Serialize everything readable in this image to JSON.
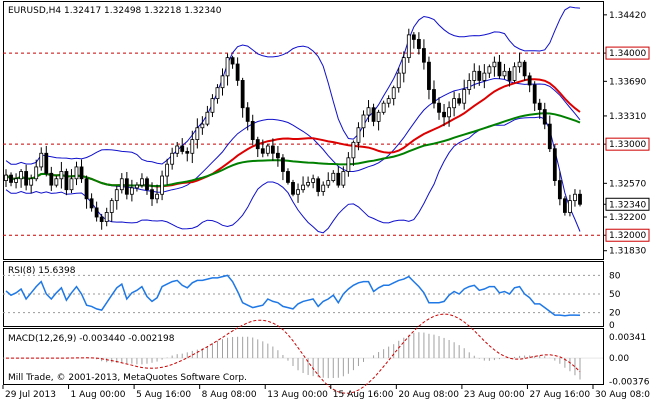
{
  "header": {
    "main": "EURUSD,H4  1.32417 1.32498 1.32218 1.32340",
    "rsi": "RSI(8) 15.6398",
    "macd": "MACD(12,26,9) -0.003440 -0.002198",
    "copyright": "Mill Trade, © 2001-2013, MetaQuotes Software Corp."
  },
  "colors": {
    "candle": "#000000",
    "bollinger": "#1010cc",
    "ma_red": "#dd0000",
    "ma_green": "#008000",
    "level": "#cc0000",
    "rsi": "#1e78e6",
    "macd_signal": "#cc0000",
    "macd_hist": "#a0a0a0"
  },
  "chart_data": [
    {
      "type": "candlestick",
      "title": "EURUSD,H4",
      "symbol": "EURUSD",
      "timeframe": "H4",
      "ohlc_last": {
        "open": 1.32417,
        "high": 1.32498,
        "low": 1.32218,
        "close": 1.3234
      },
      "ylim": [
        1.3175,
        1.3455
      ],
      "y_ticks": [
        "1.34420",
        "1.34000",
        "1.33690",
        "1.33310",
        "1.33000",
        "1.32570",
        "1.32340",
        "1.32200",
        "1.32000",
        "1.31830"
      ],
      "x_ticks": [
        "29 Jul 2013",
        "1 Aug 00:00",
        "5 Aug 16:00",
        "8 Aug 08:00",
        "13 Aug 00:00",
        "15 Aug 16:00",
        "20 Aug 08:00",
        "23 Aug 00:00",
        "27 Aug 16:00",
        "30 Aug 08:00"
      ],
      "levels": [
        1.34,
        1.33,
        1.32
      ],
      "level_labels": [
        "1.34000",
        "1.33000",
        "1.32000"
      ],
      "current_price_label": "1.32340",
      "closes": [
        1.3266,
        1.3258,
        1.3262,
        1.327,
        1.3255,
        1.3262,
        1.3275,
        1.329,
        1.3268,
        1.3255,
        1.3262,
        1.327,
        1.325,
        1.3262,
        1.3275,
        1.3262,
        1.324,
        1.323,
        1.322,
        1.3215,
        1.3225,
        1.3238,
        1.325,
        1.3262,
        1.3245,
        1.3252,
        1.3255,
        1.3262,
        1.325,
        1.324,
        1.3245,
        1.3265,
        1.3278,
        1.329,
        1.3298,
        1.3292,
        1.329,
        1.3305,
        1.3318,
        1.3322,
        1.3335,
        1.335,
        1.3362,
        1.3375,
        1.3395,
        1.3388,
        1.337,
        1.334,
        1.3325,
        1.3305,
        1.3295,
        1.329,
        1.3298,
        1.329,
        1.3285,
        1.327,
        1.3258,
        1.3245,
        1.325,
        1.3255,
        1.3258,
        1.3262,
        1.3248,
        1.3255,
        1.326,
        1.3268,
        1.3255,
        1.327,
        1.3285,
        1.3302,
        1.3318,
        1.3332,
        1.334,
        1.3325,
        1.3335,
        1.3345,
        1.335,
        1.3362,
        1.3378,
        1.3395,
        1.342,
        1.3415,
        1.3405,
        1.339,
        1.336,
        1.3345,
        1.3335,
        1.333,
        1.334,
        1.335,
        1.3345,
        1.336,
        1.337,
        1.338,
        1.337,
        1.3378,
        1.3385,
        1.339,
        1.3375,
        1.338,
        1.337,
        1.3385,
        1.339,
        1.3375,
        1.3365,
        1.3345,
        1.3338,
        1.3322,
        1.3295,
        1.326,
        1.324,
        1.3225,
        1.3238,
        1.3245,
        1.3234
      ],
      "overlays": [
        {
          "name": "Bollinger Bands",
          "color": "#1010cc"
        },
        {
          "name": "Moving Average (red)",
          "color": "#dd0000"
        },
        {
          "name": "Moving Average (green)",
          "color": "#008000"
        }
      ]
    },
    {
      "type": "line",
      "title": "RSI(8) 15.6398",
      "ylim": [
        0,
        100
      ],
      "y_ticks": [
        "80",
        "50",
        "20",
        "0"
      ],
      "levels": [
        80,
        50,
        20
      ],
      "values": [
        55,
        48,
        52,
        58,
        42,
        52,
        62,
        70,
        50,
        42,
        52,
        60,
        40,
        52,
        62,
        50,
        32,
        30,
        26,
        24,
        36,
        48,
        60,
        66,
        42,
        52,
        56,
        62,
        46,
        38,
        44,
        62,
        66,
        70,
        72,
        64,
        60,
        68,
        72,
        72,
        74,
        76,
        76,
        78,
        80,
        70,
        54,
        36,
        32,
        28,
        30,
        32,
        42,
        38,
        36,
        30,
        28,
        26,
        34,
        38,
        40,
        42,
        30,
        38,
        42,
        48,
        36,
        50,
        58,
        64,
        68,
        70,
        70,
        54,
        60,
        64,
        64,
        68,
        72,
        74,
        78,
        70,
        62,
        52,
        36,
        36,
        36,
        38,
        48,
        54,
        50,
        58,
        62,
        64,
        56,
        58,
        62,
        62,
        52,
        54,
        50,
        60,
        62,
        50,
        44,
        34,
        34,
        28,
        22,
        16,
        16,
        15,
        16,
        16,
        15.6
      ]
    },
    {
      "type": "bar",
      "title": "MACD(12,26,9) -0.003440 -0.002198",
      "ylim": [
        -0.004,
        0.0045
      ],
      "y_ticks": [
        "0.00341",
        "0.00",
        "-0.003767"
      ],
      "main_last": -0.00344,
      "signal_last": -0.002198
    }
  ]
}
